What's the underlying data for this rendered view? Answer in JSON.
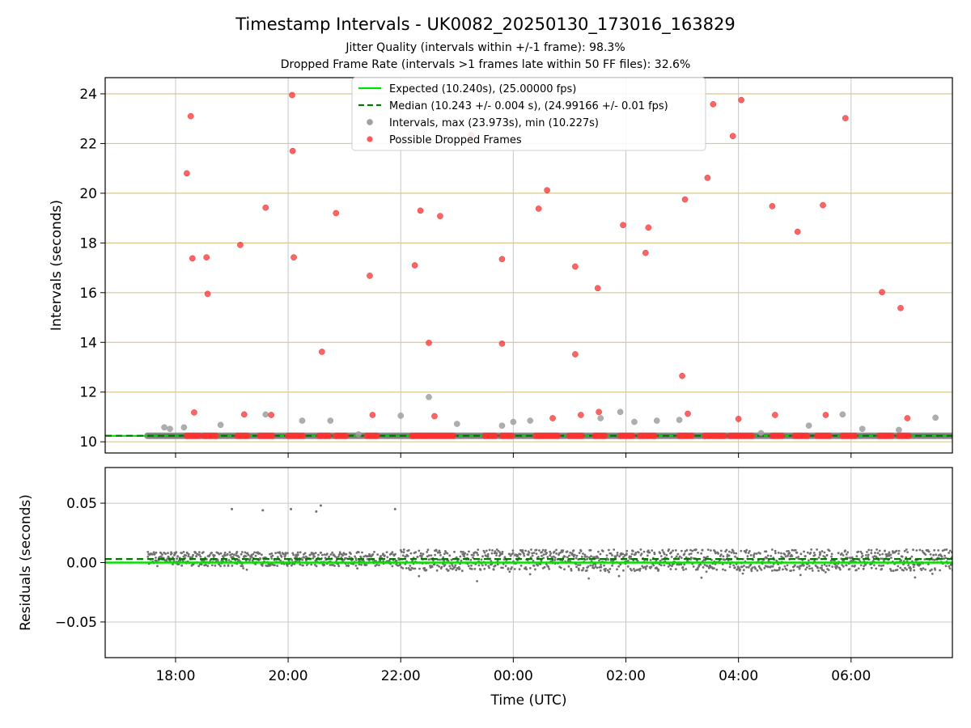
{
  "header": {
    "title": "Timestamp Intervals - UK0082_20250130_173016_163829",
    "subtitle_1": "Jitter Quality (intervals within +/-1 frame): 98.3%",
    "subtitle_2": "Dropped Frame Rate (intervals >1 frames late within 50 FF files): 32.6%"
  },
  "colors": {
    "expected": "#00e000",
    "median": "#007800",
    "intervals": "#a0a0a0",
    "dropped": "#ff3030",
    "residuals": "#707070",
    "hgrid_top": "#d8c890",
    "grid": "#c8c8c8"
  },
  "chart_data": [
    {
      "type": "scatter",
      "ylabel": "Intervals (seconds)",
      "ylim": [
        9.55,
        24.65
      ],
      "xlim": [
        16.75,
        31.8
      ],
      "yticks": [
        10,
        12,
        14,
        16,
        18,
        20,
        22,
        24
      ],
      "ytick_labels": [
        "10",
        "12",
        "14",
        "16",
        "18",
        "20",
        "22",
        "24"
      ],
      "grid": "on",
      "legend_position": "top-center",
      "legend": [
        {
          "key": "expected",
          "label": "Expected (10.240s), (25.00000 fps)"
        },
        {
          "key": "median",
          "label": "Median (10.243 +/- 0.004 s), (24.99166 +/- 0.01 fps)"
        },
        {
          "key": "intervals",
          "label": "Intervals, max (23.973s), min (10.227s)"
        },
        {
          "key": "dropped",
          "label": "Possible Dropped Frames"
        }
      ],
      "expected_value": 10.24,
      "median_value": 10.243,
      "data_x_range": [
        17.5,
        31.8
      ],
      "intervals_baseline": 10.243,
      "intervals_points": [
        [
          17.8,
          10.58
        ],
        [
          17.9,
          10.52
        ],
        [
          18.15,
          10.58
        ],
        [
          18.8,
          10.68
        ],
        [
          19.6,
          11.1
        ],
        [
          20.25,
          10.85
        ],
        [
          20.75,
          10.85
        ],
        [
          21.25,
          10.3
        ],
        [
          22.0,
          11.05
        ],
        [
          22.5,
          11.8
        ],
        [
          23.0,
          10.72
        ],
        [
          23.8,
          10.65
        ],
        [
          24.0,
          10.8
        ],
        [
          24.3,
          10.85
        ],
        [
          25.55,
          10.95
        ],
        [
          25.9,
          11.2
        ],
        [
          26.15,
          10.8
        ],
        [
          26.55,
          10.85
        ],
        [
          26.95,
          10.88
        ],
        [
          28.4,
          10.35
        ],
        [
          29.25,
          10.65
        ],
        [
          29.85,
          11.1
        ],
        [
          30.2,
          10.52
        ],
        [
          30.85,
          10.48
        ],
        [
          31.5,
          10.97
        ]
      ],
      "dropped_points": [
        [
          18.2,
          20.8
        ],
        [
          18.27,
          23.1
        ],
        [
          18.3,
          17.38
        ],
        [
          18.33,
          11.18
        ],
        [
          18.55,
          17.42
        ],
        [
          18.57,
          15.95
        ],
        [
          19.15,
          17.92
        ],
        [
          19.22,
          11.1
        ],
        [
          19.6,
          19.42
        ],
        [
          19.7,
          11.08
        ],
        [
          20.07,
          23.95
        ],
        [
          20.08,
          21.7
        ],
        [
          20.1,
          17.42
        ],
        [
          20.6,
          13.62
        ],
        [
          20.85,
          19.2
        ],
        [
          21.45,
          16.68
        ],
        [
          21.5,
          11.08
        ],
        [
          22.25,
          17.1
        ],
        [
          22.35,
          19.3
        ],
        [
          22.5,
          13.98
        ],
        [
          22.6,
          11.03
        ],
        [
          22.7,
          19.08
        ],
        [
          23.25,
          22.35
        ],
        [
          23.8,
          17.35
        ],
        [
          23.8,
          13.95
        ],
        [
          24.45,
          19.38
        ],
        [
          24.6,
          20.12
        ],
        [
          24.7,
          10.95
        ],
        [
          25.1,
          17.05
        ],
        [
          25.1,
          13.52
        ],
        [
          25.2,
          11.08
        ],
        [
          25.5,
          16.18
        ],
        [
          25.52,
          11.2
        ],
        [
          25.95,
          18.72
        ],
        [
          26.35,
          17.6
        ],
        [
          26.4,
          18.62
        ],
        [
          27.0,
          12.65
        ],
        [
          27.05,
          19.75
        ],
        [
          27.1,
          11.13
        ],
        [
          27.45,
          20.62
        ],
        [
          27.55,
          23.58
        ],
        [
          27.9,
          22.3
        ],
        [
          28.0,
          10.92
        ],
        [
          28.05,
          23.75
        ],
        [
          28.6,
          19.48
        ],
        [
          28.65,
          11.08
        ],
        [
          29.05,
          18.45
        ],
        [
          29.5,
          19.52
        ],
        [
          29.55,
          11.08
        ],
        [
          29.9,
          23.02
        ],
        [
          30.55,
          16.02
        ],
        [
          30.88,
          15.38
        ],
        [
          31.0,
          10.95
        ]
      ],
      "dropped_baseline": 10.24,
      "dropped_baseline_segments": [
        [
          18.2,
          18.45
        ],
        [
          18.5,
          18.75
        ],
        [
          19.1,
          19.3
        ],
        [
          19.5,
          19.75
        ],
        [
          20.0,
          20.3
        ],
        [
          20.55,
          20.75
        ],
        [
          20.85,
          21.05
        ],
        [
          21.4,
          21.6
        ],
        [
          22.2,
          22.95
        ],
        [
          23.5,
          23.7
        ],
        [
          23.8,
          24.0
        ],
        [
          24.4,
          24.8
        ],
        [
          25.0,
          25.25
        ],
        [
          25.45,
          25.65
        ],
        [
          25.9,
          26.15
        ],
        [
          26.25,
          26.55
        ],
        [
          26.95,
          27.2
        ],
        [
          27.4,
          27.75
        ],
        [
          27.85,
          28.25
        ],
        [
          28.6,
          28.8
        ],
        [
          29.0,
          29.25
        ],
        [
          29.4,
          29.65
        ],
        [
          29.85,
          30.1
        ],
        [
          30.5,
          30.75
        ],
        [
          30.85,
          31.05
        ]
      ]
    },
    {
      "type": "scatter",
      "xlabel": "Time (UTC)",
      "ylabel": "Residuals (seconds)",
      "ylim": [
        -0.08,
        0.08
      ],
      "yticks": [
        0.05,
        0.0,
        -0.05
      ],
      "ytick_labels": [
        "0.05",
        "0.00",
        "−0.05"
      ],
      "xticks": [
        18,
        20,
        22,
        24,
        26,
        28,
        30
      ],
      "xtick_labels": [
        "18:00",
        "20:00",
        "22:00",
        "00:00",
        "02:00",
        "04:00",
        "06:00"
      ],
      "expected_value": 0.0,
      "median_value": 0.003,
      "outliers": [
        [
          19.0,
          0.045
        ],
        [
          19.55,
          0.044
        ],
        [
          20.05,
          0.045
        ],
        [
          20.5,
          0.043
        ],
        [
          20.58,
          0.048
        ],
        [
          21.9,
          0.045
        ]
      ],
      "residual_bands": [
        {
          "x_range": [
            17.5,
            22.0
          ],
          "center": 0.003,
          "spread": 0.006
        },
        {
          "x_range": [
            22.0,
            31.8
          ],
          "center": 0.002,
          "spread": 0.009
        }
      ]
    }
  ]
}
